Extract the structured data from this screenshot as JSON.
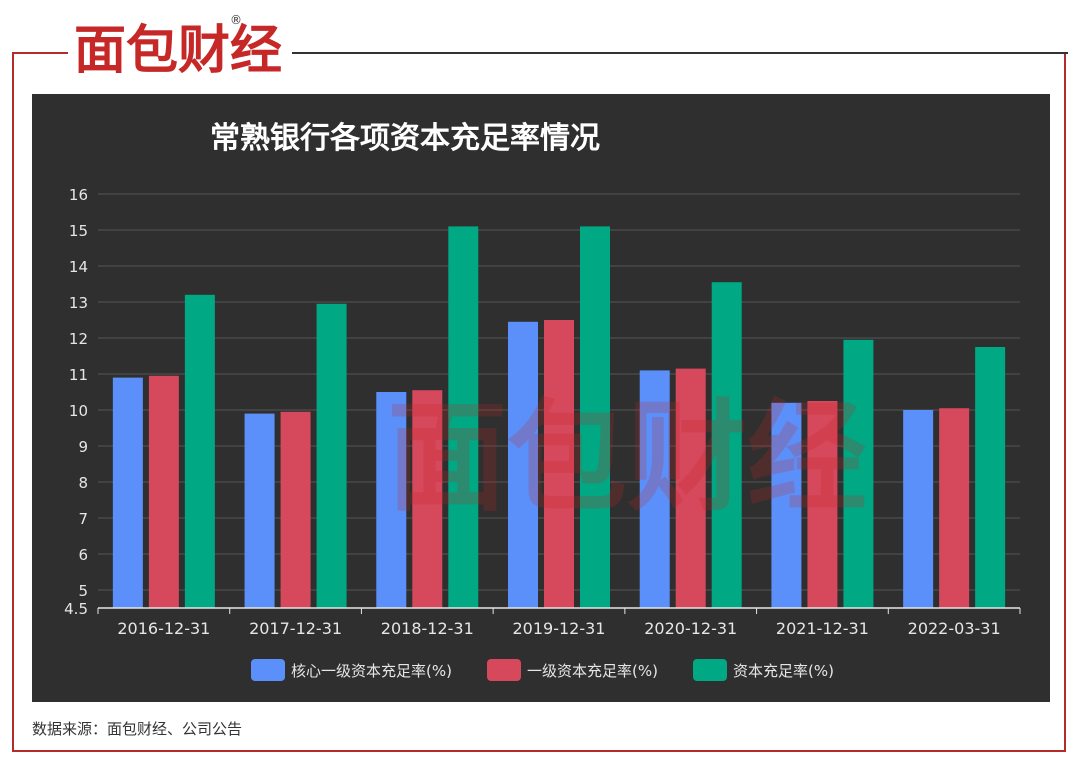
{
  "brand": {
    "logo_text": "面包财经",
    "registered_mark": "®"
  },
  "footer": {
    "source": "数据来源：面包财经、公司公告"
  },
  "colors": {
    "background": "#2f2f2f",
    "series_1": "#5b8ff9",
    "series_2": "#d6485c",
    "series_3": "#00a884",
    "title": "#ffffff",
    "axis_text": "#e6e6e6",
    "grid": "#555555",
    "frame": "#b32b2b"
  },
  "chart_data": {
    "type": "bar",
    "title": "常熟银行各项资本充足率情况",
    "xlabel": "",
    "ylabel": "",
    "categories": [
      "2016-12-31",
      "2017-12-31",
      "2018-12-31",
      "2019-12-31",
      "2020-12-31",
      "2021-12-31",
      "2022-03-31"
    ],
    "series": [
      {
        "name": "核心一级资本充足率(%)",
        "color": "#5b8ff9",
        "values": [
          10.9,
          9.9,
          10.5,
          12.45,
          11.1,
          10.2,
          10.0
        ]
      },
      {
        "name": "一级资本充足率(%)",
        "color": "#d6485c",
        "values": [
          10.95,
          9.95,
          10.55,
          12.5,
          11.15,
          10.25,
          10.05
        ]
      },
      {
        "name": "资本充足率(%)",
        "color": "#00a884",
        "values": [
          13.2,
          12.95,
          15.1,
          15.1,
          13.55,
          11.95,
          11.75
        ]
      }
    ],
    "ylim": [
      4.5,
      16
    ],
    "yticks": [
      4.5,
      5,
      6,
      7,
      8,
      9,
      10,
      11,
      12,
      13,
      14,
      15,
      16
    ],
    "grid": true,
    "legend_position": "bottom-center"
  }
}
